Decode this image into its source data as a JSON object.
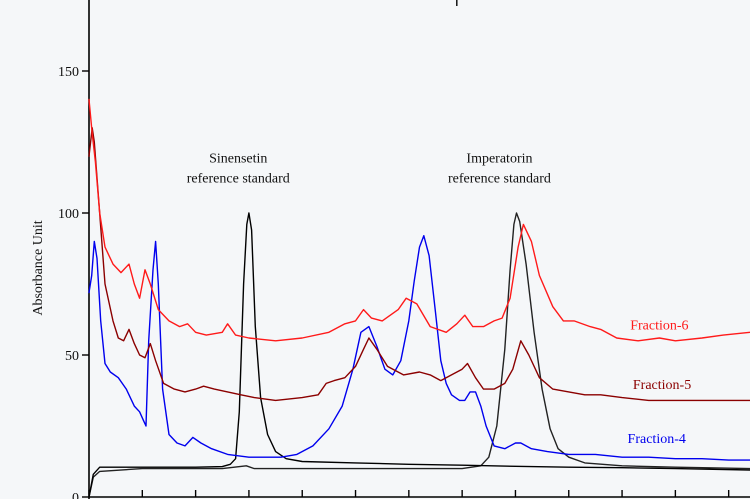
{
  "chart_data": {
    "type": "line",
    "title": "",
    "xlabel": "",
    "ylabel": "Absorbance Unit",
    "ylim": [
      0,
      175
    ],
    "xlim": [
      0,
      12.4
    ],
    "yticks": [
      0,
      50,
      100,
      150
    ],
    "ytick_labels": [
      "0",
      "50",
      "100",
      "150"
    ],
    "xticks": [
      0,
      1,
      2,
      3,
      4,
      5,
      6,
      7,
      8,
      9,
      10,
      11,
      12
    ],
    "grid": false,
    "annotations": [
      {
        "lines": [
          "Sinensetin",
          "reference standard"
        ],
        "x": 2.8,
        "y": 110
      },
      {
        "lines": [
          "Imperatorin",
          "reference standard"
        ],
        "x": 7.7,
        "y": 110
      }
    ],
    "series": [
      {
        "name": "Fraction-6",
        "color": "#ff1a1a",
        "label_at": [
          10.7,
          59
        ],
        "points": [
          [
            0,
            140
          ],
          [
            0.06,
            128
          ],
          [
            0.12,
            118
          ],
          [
            0.2,
            100
          ],
          [
            0.3,
            88
          ],
          [
            0.45,
            82
          ],
          [
            0.6,
            79
          ],
          [
            0.75,
            82
          ],
          [
            0.85,
            75
          ],
          [
            0.95,
            70
          ],
          [
            1.05,
            80
          ],
          [
            1.15,
            75
          ],
          [
            1.3,
            66
          ],
          [
            1.5,
            62
          ],
          [
            1.7,
            60
          ],
          [
            1.85,
            61
          ],
          [
            2.0,
            58
          ],
          [
            2.2,
            57
          ],
          [
            2.5,
            58
          ],
          [
            2.6,
            61
          ],
          [
            2.75,
            57
          ],
          [
            3.0,
            56
          ],
          [
            3.5,
            55
          ],
          [
            4.0,
            56
          ],
          [
            4.5,
            58
          ],
          [
            4.8,
            61
          ],
          [
            5.0,
            62
          ],
          [
            5.15,
            66
          ],
          [
            5.3,
            63
          ],
          [
            5.5,
            62
          ],
          [
            5.8,
            66
          ],
          [
            5.95,
            70
          ],
          [
            6.15,
            68
          ],
          [
            6.4,
            60
          ],
          [
            6.7,
            58
          ],
          [
            6.9,
            61
          ],
          [
            7.05,
            64
          ],
          [
            7.2,
            60
          ],
          [
            7.4,
            60
          ],
          [
            7.6,
            62
          ],
          [
            7.75,
            63
          ],
          [
            7.9,
            70
          ],
          [
            8.05,
            88
          ],
          [
            8.15,
            96
          ],
          [
            8.3,
            90
          ],
          [
            8.45,
            78
          ],
          [
            8.7,
            67
          ],
          [
            8.9,
            62
          ],
          [
            9.1,
            62
          ],
          [
            9.4,
            60
          ],
          [
            9.6,
            59
          ],
          [
            9.9,
            56
          ],
          [
            10.3,
            55
          ],
          [
            10.7,
            56
          ],
          [
            11.0,
            55
          ],
          [
            11.5,
            56
          ],
          [
            11.9,
            57
          ],
          [
            12.4,
            58
          ]
        ]
      },
      {
        "name": "Fraction-5",
        "color": "#8b0000",
        "label_at": [
          10.75,
          38
        ],
        "points": [
          [
            0,
            120
          ],
          [
            0.06,
            130
          ],
          [
            0.1,
            125
          ],
          [
            0.18,
            105
          ],
          [
            0.3,
            75
          ],
          [
            0.45,
            62
          ],
          [
            0.55,
            56
          ],
          [
            0.65,
            55
          ],
          [
            0.75,
            59
          ],
          [
            0.85,
            54
          ],
          [
            0.95,
            50
          ],
          [
            1.05,
            49
          ],
          [
            1.15,
            54
          ],
          [
            1.25,
            48
          ],
          [
            1.4,
            40
          ],
          [
            1.6,
            38
          ],
          [
            1.8,
            37
          ],
          [
            2.0,
            38
          ],
          [
            2.15,
            39
          ],
          [
            2.35,
            38
          ],
          [
            2.6,
            37
          ],
          [
            2.85,
            36
          ],
          [
            3.1,
            35
          ],
          [
            3.5,
            34
          ],
          [
            4.0,
            35
          ],
          [
            4.3,
            36
          ],
          [
            4.45,
            40
          ],
          [
            4.6,
            41
          ],
          [
            4.8,
            42
          ],
          [
            5.0,
            46
          ],
          [
            5.15,
            52
          ],
          [
            5.25,
            56
          ],
          [
            5.4,
            52
          ],
          [
            5.6,
            46
          ],
          [
            5.9,
            43
          ],
          [
            6.2,
            44
          ],
          [
            6.4,
            43
          ],
          [
            6.6,
            41
          ],
          [
            6.8,
            43
          ],
          [
            7.0,
            45
          ],
          [
            7.1,
            47
          ],
          [
            7.25,
            42
          ],
          [
            7.4,
            38
          ],
          [
            7.6,
            38
          ],
          [
            7.8,
            40
          ],
          [
            7.95,
            45
          ],
          [
            8.1,
            55
          ],
          [
            8.25,
            50
          ],
          [
            8.45,
            42
          ],
          [
            8.7,
            38
          ],
          [
            9.0,
            37
          ],
          [
            9.3,
            36
          ],
          [
            9.6,
            36
          ],
          [
            10.0,
            35
          ],
          [
            10.5,
            34
          ],
          [
            11.0,
            34
          ],
          [
            11.5,
            34
          ],
          [
            12.0,
            34
          ],
          [
            12.4,
            34
          ]
        ]
      },
      {
        "name": "Fraction-4",
        "color": "#0000ee",
        "label_at": [
          10.65,
          19
        ],
        "points": [
          [
            0,
            72
          ],
          [
            0.05,
            78
          ],
          [
            0.1,
            90
          ],
          [
            0.15,
            84
          ],
          [
            0.22,
            62
          ],
          [
            0.3,
            47
          ],
          [
            0.4,
            44
          ],
          [
            0.55,
            42
          ],
          [
            0.7,
            38
          ],
          [
            0.85,
            32
          ],
          [
            0.95,
            30
          ],
          [
            1.02,
            27
          ],
          [
            1.07,
            25
          ],
          [
            1.12,
            55
          ],
          [
            1.2,
            80
          ],
          [
            1.25,
            90
          ],
          [
            1.3,
            75
          ],
          [
            1.38,
            38
          ],
          [
            1.5,
            22
          ],
          [
            1.65,
            19
          ],
          [
            1.8,
            18
          ],
          [
            1.95,
            21
          ],
          [
            2.1,
            19
          ],
          [
            2.3,
            17
          ],
          [
            2.6,
            15
          ],
          [
            3.0,
            14
          ],
          [
            3.3,
            14
          ],
          [
            3.6,
            14
          ],
          [
            3.9,
            15
          ],
          [
            4.2,
            18
          ],
          [
            4.5,
            24
          ],
          [
            4.75,
            32
          ],
          [
            4.95,
            45
          ],
          [
            5.1,
            58
          ],
          [
            5.25,
            60
          ],
          [
            5.4,
            53
          ],
          [
            5.55,
            45
          ],
          [
            5.7,
            43
          ],
          [
            5.85,
            48
          ],
          [
            6.0,
            62
          ],
          [
            6.1,
            76
          ],
          [
            6.2,
            88
          ],
          [
            6.28,
            92
          ],
          [
            6.38,
            85
          ],
          [
            6.5,
            65
          ],
          [
            6.6,
            48
          ],
          [
            6.7,
            40
          ],
          [
            6.8,
            36
          ],
          [
            6.95,
            34
          ],
          [
            7.05,
            34
          ],
          [
            7.15,
            37
          ],
          [
            7.25,
            37
          ],
          [
            7.35,
            32
          ],
          [
            7.45,
            25
          ],
          [
            7.6,
            18
          ],
          [
            7.8,
            17
          ],
          [
            8.0,
            19
          ],
          [
            8.1,
            19
          ],
          [
            8.3,
            17
          ],
          [
            8.6,
            16
          ],
          [
            9.0,
            15
          ],
          [
            9.5,
            15
          ],
          [
            10.0,
            14
          ],
          [
            10.5,
            14
          ],
          [
            11.0,
            13.5
          ],
          [
            11.5,
            13.5
          ],
          [
            12.0,
            13
          ],
          [
            12.4,
            13
          ]
        ]
      },
      {
        "name": "Sinensetin reference standard",
        "color": "#000000",
        "points": [
          [
            0,
            0
          ],
          [
            0.08,
            8
          ],
          [
            0.2,
            10.5
          ],
          [
            0.6,
            10.5
          ],
          [
            1.2,
            10.5
          ],
          [
            2.0,
            10.5
          ],
          [
            2.5,
            10.7
          ],
          [
            2.65,
            11.5
          ],
          [
            2.75,
            13.5
          ],
          [
            2.82,
            30
          ],
          [
            2.9,
            75
          ],
          [
            2.96,
            96
          ],
          [
            3.0,
            100
          ],
          [
            3.05,
            94
          ],
          [
            3.12,
            60
          ],
          [
            3.22,
            35
          ],
          [
            3.35,
            22
          ],
          [
            3.5,
            16
          ],
          [
            3.7,
            13.5
          ],
          [
            4.0,
            12.5
          ],
          [
            5.0,
            12
          ],
          [
            6.0,
            11.5
          ],
          [
            7.0,
            11.2
          ],
          [
            8.0,
            10.8
          ],
          [
            9.0,
            10.5
          ],
          [
            10.0,
            10.3
          ],
          [
            11.0,
            10
          ],
          [
            12.4,
            9.5
          ]
        ]
      },
      {
        "name": "Imperatorin reference standard",
        "color": "#222222",
        "points": [
          [
            0,
            0
          ],
          [
            0.08,
            7
          ],
          [
            0.2,
            9
          ],
          [
            1.0,
            10
          ],
          [
            2.0,
            10
          ],
          [
            2.5,
            10
          ],
          [
            2.95,
            11
          ],
          [
            3.1,
            10
          ],
          [
            4.0,
            10
          ],
          [
            5.0,
            10
          ],
          [
            6.0,
            10
          ],
          [
            7.0,
            10
          ],
          [
            7.35,
            11
          ],
          [
            7.5,
            14
          ],
          [
            7.65,
            25
          ],
          [
            7.8,
            52
          ],
          [
            7.9,
            80
          ],
          [
            7.97,
            96
          ],
          [
            8.02,
            100
          ],
          [
            8.08,
            97
          ],
          [
            8.2,
            82
          ],
          [
            8.35,
            58
          ],
          [
            8.5,
            38
          ],
          [
            8.65,
            24
          ],
          [
            8.8,
            17
          ],
          [
            9.0,
            14
          ],
          [
            9.3,
            12
          ],
          [
            10.0,
            11
          ],
          [
            11.0,
            10.5
          ],
          [
            12.4,
            10
          ]
        ]
      }
    ]
  }
}
